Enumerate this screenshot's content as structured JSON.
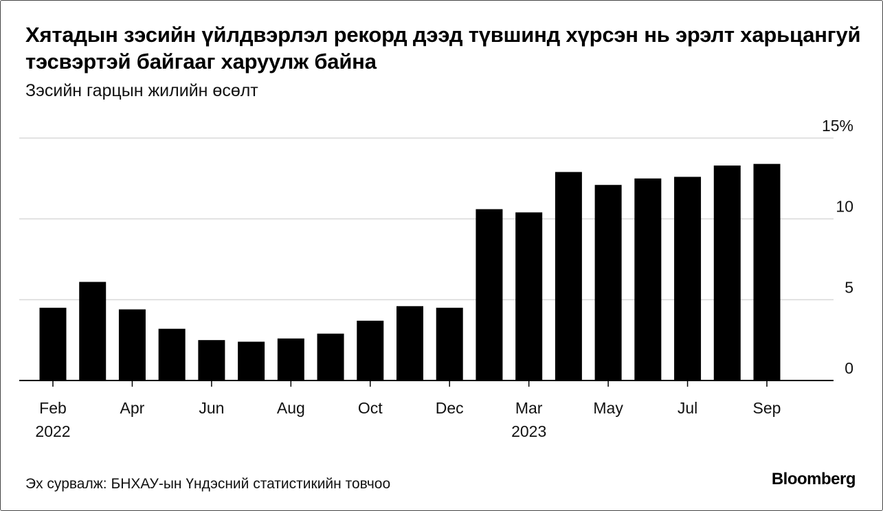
{
  "title": "Хятадын зэсийн үйлдвэрлэл рекорд дээд түвшинд хүрсэн нь эрэлт харьцангуй тэсвэртэй байгааг харуулж байна",
  "subtitle": "Зэсийн гарцын жилийн өсөлт",
  "source": "Эх сурвалж: БНХАУ-ын Үндэсний статистикийн товчоо",
  "brand": "Bloomberg",
  "chart_data": {
    "type": "bar",
    "title": "Хятадын зэсийн үйлдвэрлэл рекорд дээд түвшинд хүрсэн нь эрэлт харьцангуй тэсвэртэй байгааг харуулж байна",
    "subtitle": "Зэсийн гарцын жилийн өсөлт",
    "xlabel": "",
    "ylabel": "",
    "ylim": [
      0,
      15
    ],
    "y_ticks": [
      {
        "value": 0,
        "label": "0"
      },
      {
        "value": 5,
        "label": "5"
      },
      {
        "value": 10,
        "label": "10"
      },
      {
        "value": 15,
        "label": "15%"
      }
    ],
    "grid": true,
    "y_axis_position": "right",
    "bar_color": "#000000",
    "categories": [
      "2022-02",
      "2022-03",
      "2022-04",
      "2022-05",
      "2022-06",
      "2022-07",
      "2022-08",
      "2022-09",
      "2022-10",
      "2022-11",
      "2022-12",
      "2023-01/02",
      "2023-03",
      "2023-04",
      "2023-05",
      "2023-06",
      "2023-07",
      "2023-08",
      "2023-09"
    ],
    "values": [
      4.5,
      6.1,
      4.4,
      3.2,
      2.5,
      2.4,
      2.6,
      2.9,
      3.7,
      4.6,
      4.5,
      10.6,
      10.4,
      12.9,
      12.1,
      12.5,
      12.6,
      13.3,
      13.4
    ],
    "x_tick_labels": [
      {
        "index": 0,
        "label": "Feb",
        "year": "2022"
      },
      {
        "index": 2,
        "label": "Apr",
        "year": ""
      },
      {
        "index": 4,
        "label": "Jun",
        "year": ""
      },
      {
        "index": 6,
        "label": "Aug",
        "year": ""
      },
      {
        "index": 8,
        "label": "Oct",
        "year": ""
      },
      {
        "index": 10,
        "label": "Dec",
        "year": ""
      },
      {
        "index": 12,
        "label": "Mar",
        "year": "2023"
      },
      {
        "index": 14,
        "label": "May",
        "year": ""
      },
      {
        "index": 16,
        "label": "Jul",
        "year": ""
      },
      {
        "index": 18,
        "label": "Sep",
        "year": ""
      }
    ]
  }
}
